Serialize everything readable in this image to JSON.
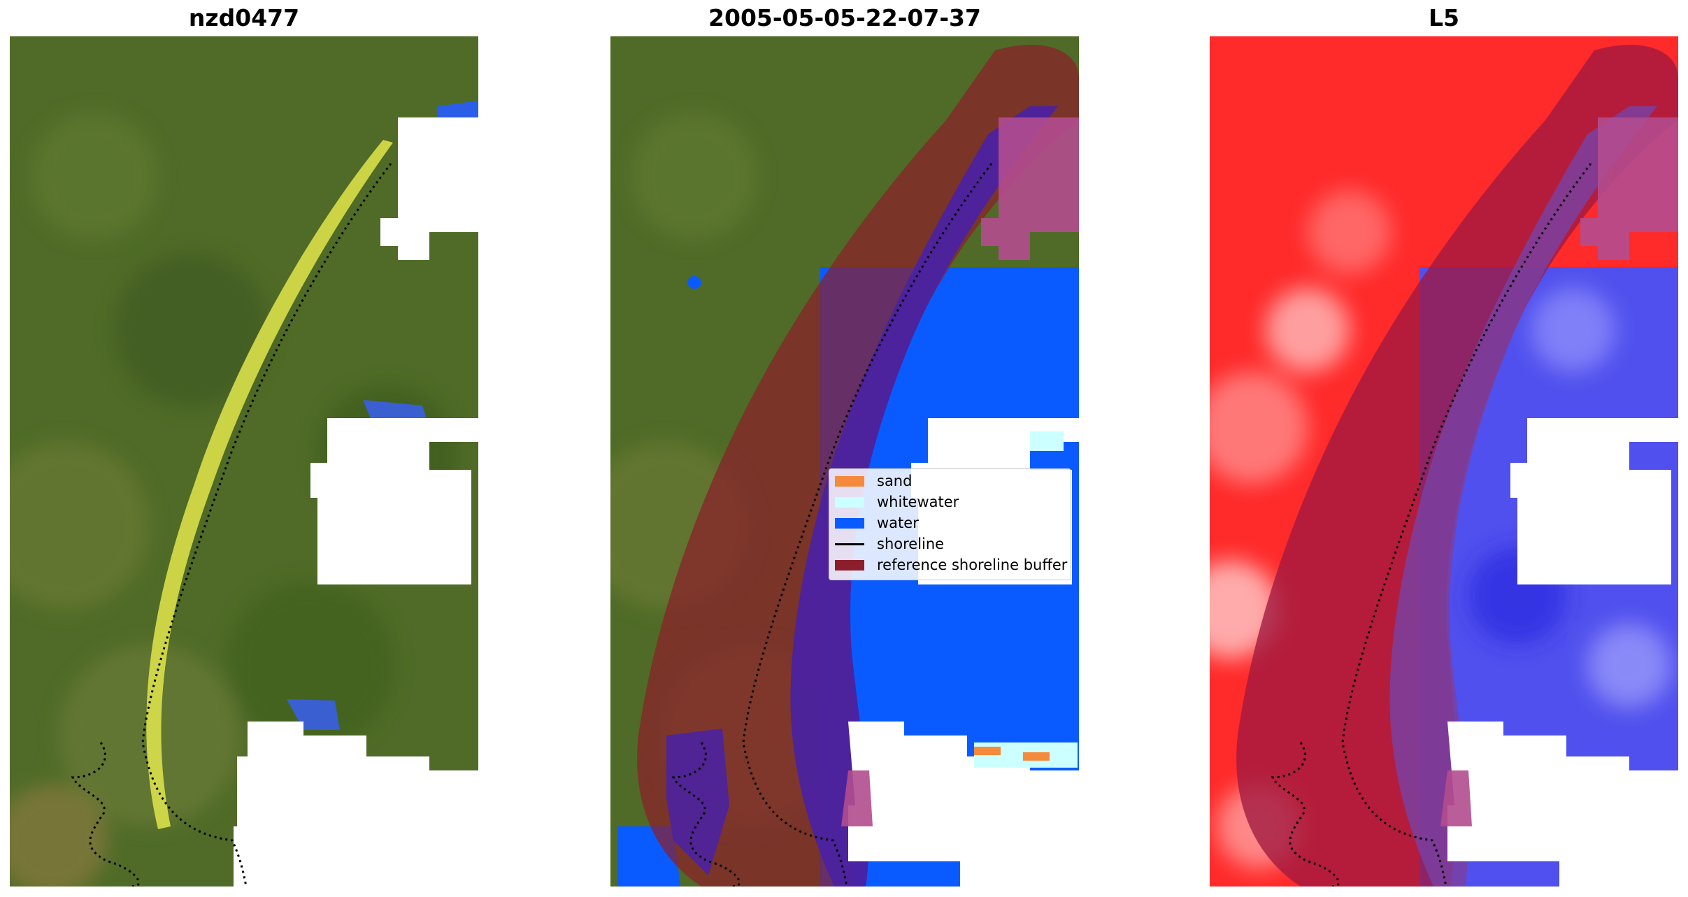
{
  "panels": [
    {
      "title": "nzd0477"
    },
    {
      "title": "2005-05-05-22-07-37"
    },
    {
      "title": "L5"
    }
  ],
  "legend": [
    {
      "label": "sand",
      "color": "#f58a3c",
      "kind": "patch"
    },
    {
      "label": "whitewater",
      "color": "#ccffff",
      "kind": "patch"
    },
    {
      "label": "water",
      "color": "#0a5bff",
      "kind": "patch"
    },
    {
      "label": "shoreline",
      "color": "#000000",
      "kind": "line"
    },
    {
      "label": "reference shoreline buffer",
      "color": "#8b1e2a",
      "kind": "patch"
    }
  ],
  "colors": {
    "land_rgb": "#4f6b27",
    "beach_sand": "#d9e04a",
    "water_class": "#0a5bff",
    "buffer_overlay": "#8b1e2a",
    "cloud_mask": "#ffffff",
    "index_land": "#ff2a2a",
    "index_water": "#5050ee"
  }
}
